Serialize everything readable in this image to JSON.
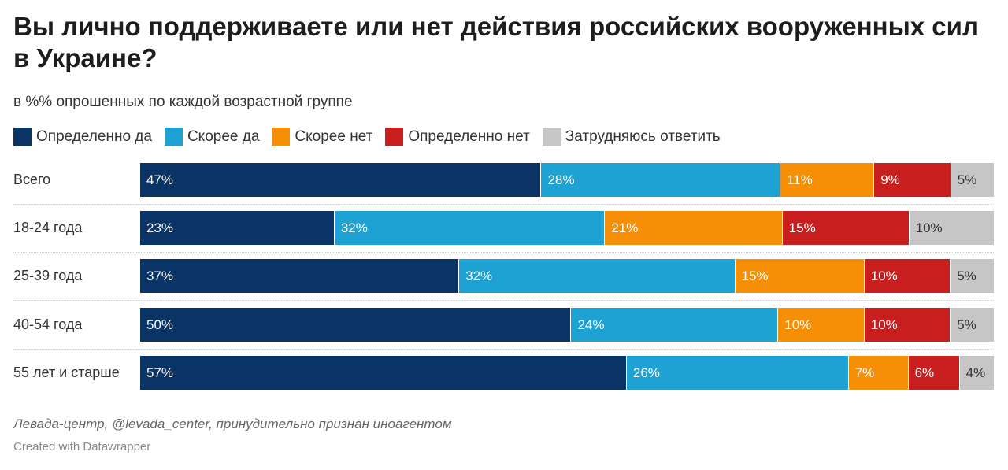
{
  "title": "Вы лично поддерживаете или нет действия российских вооруженных сил в Украине?",
  "subtitle": "в %% опрошенных по каждой возрастной группе",
  "source": "Левада-центр, @levada_center, принудительно признан иноагентом",
  "credit": "Created with Datawrapper",
  "chart_data": {
    "type": "bar",
    "stacked": true,
    "orientation": "horizontal",
    "title": "Вы лично поддерживаете или нет действия российских вооруженных сил в Украине?",
    "subtitle": "в %% опрошенных по каждой возрастной группе",
    "legend_position": "top",
    "categories": [
      "Всего",
      "18-24 года",
      "25-39 года",
      "40-54 года",
      "55 лет и старше"
    ],
    "series": [
      {
        "name": "Определенно да",
        "color": "#0b3466",
        "text_color": "#ffffff",
        "values": [
          47,
          23,
          37,
          50,
          57
        ]
      },
      {
        "name": "Скорее да",
        "color": "#1ea2d3",
        "text_color": "#ffffff",
        "values": [
          28,
          32,
          32,
          24,
          26
        ]
      },
      {
        "name": "Скорее нет",
        "color": "#f68f06",
        "text_color": "#ffffff",
        "values": [
          11,
          21,
          15,
          10,
          7
        ]
      },
      {
        "name": "Определенно нет",
        "color": "#c81e1e",
        "text_color": "#ffffff",
        "values": [
          9,
          15,
          10,
          10,
          6
        ]
      },
      {
        "name": "Затрудняюсь ответить",
        "color": "#c6c6c6",
        "text_color": "#333333",
        "values": [
          5,
          10,
          5,
          5,
          4
        ]
      }
    ],
    "value_suffix": "%"
  }
}
